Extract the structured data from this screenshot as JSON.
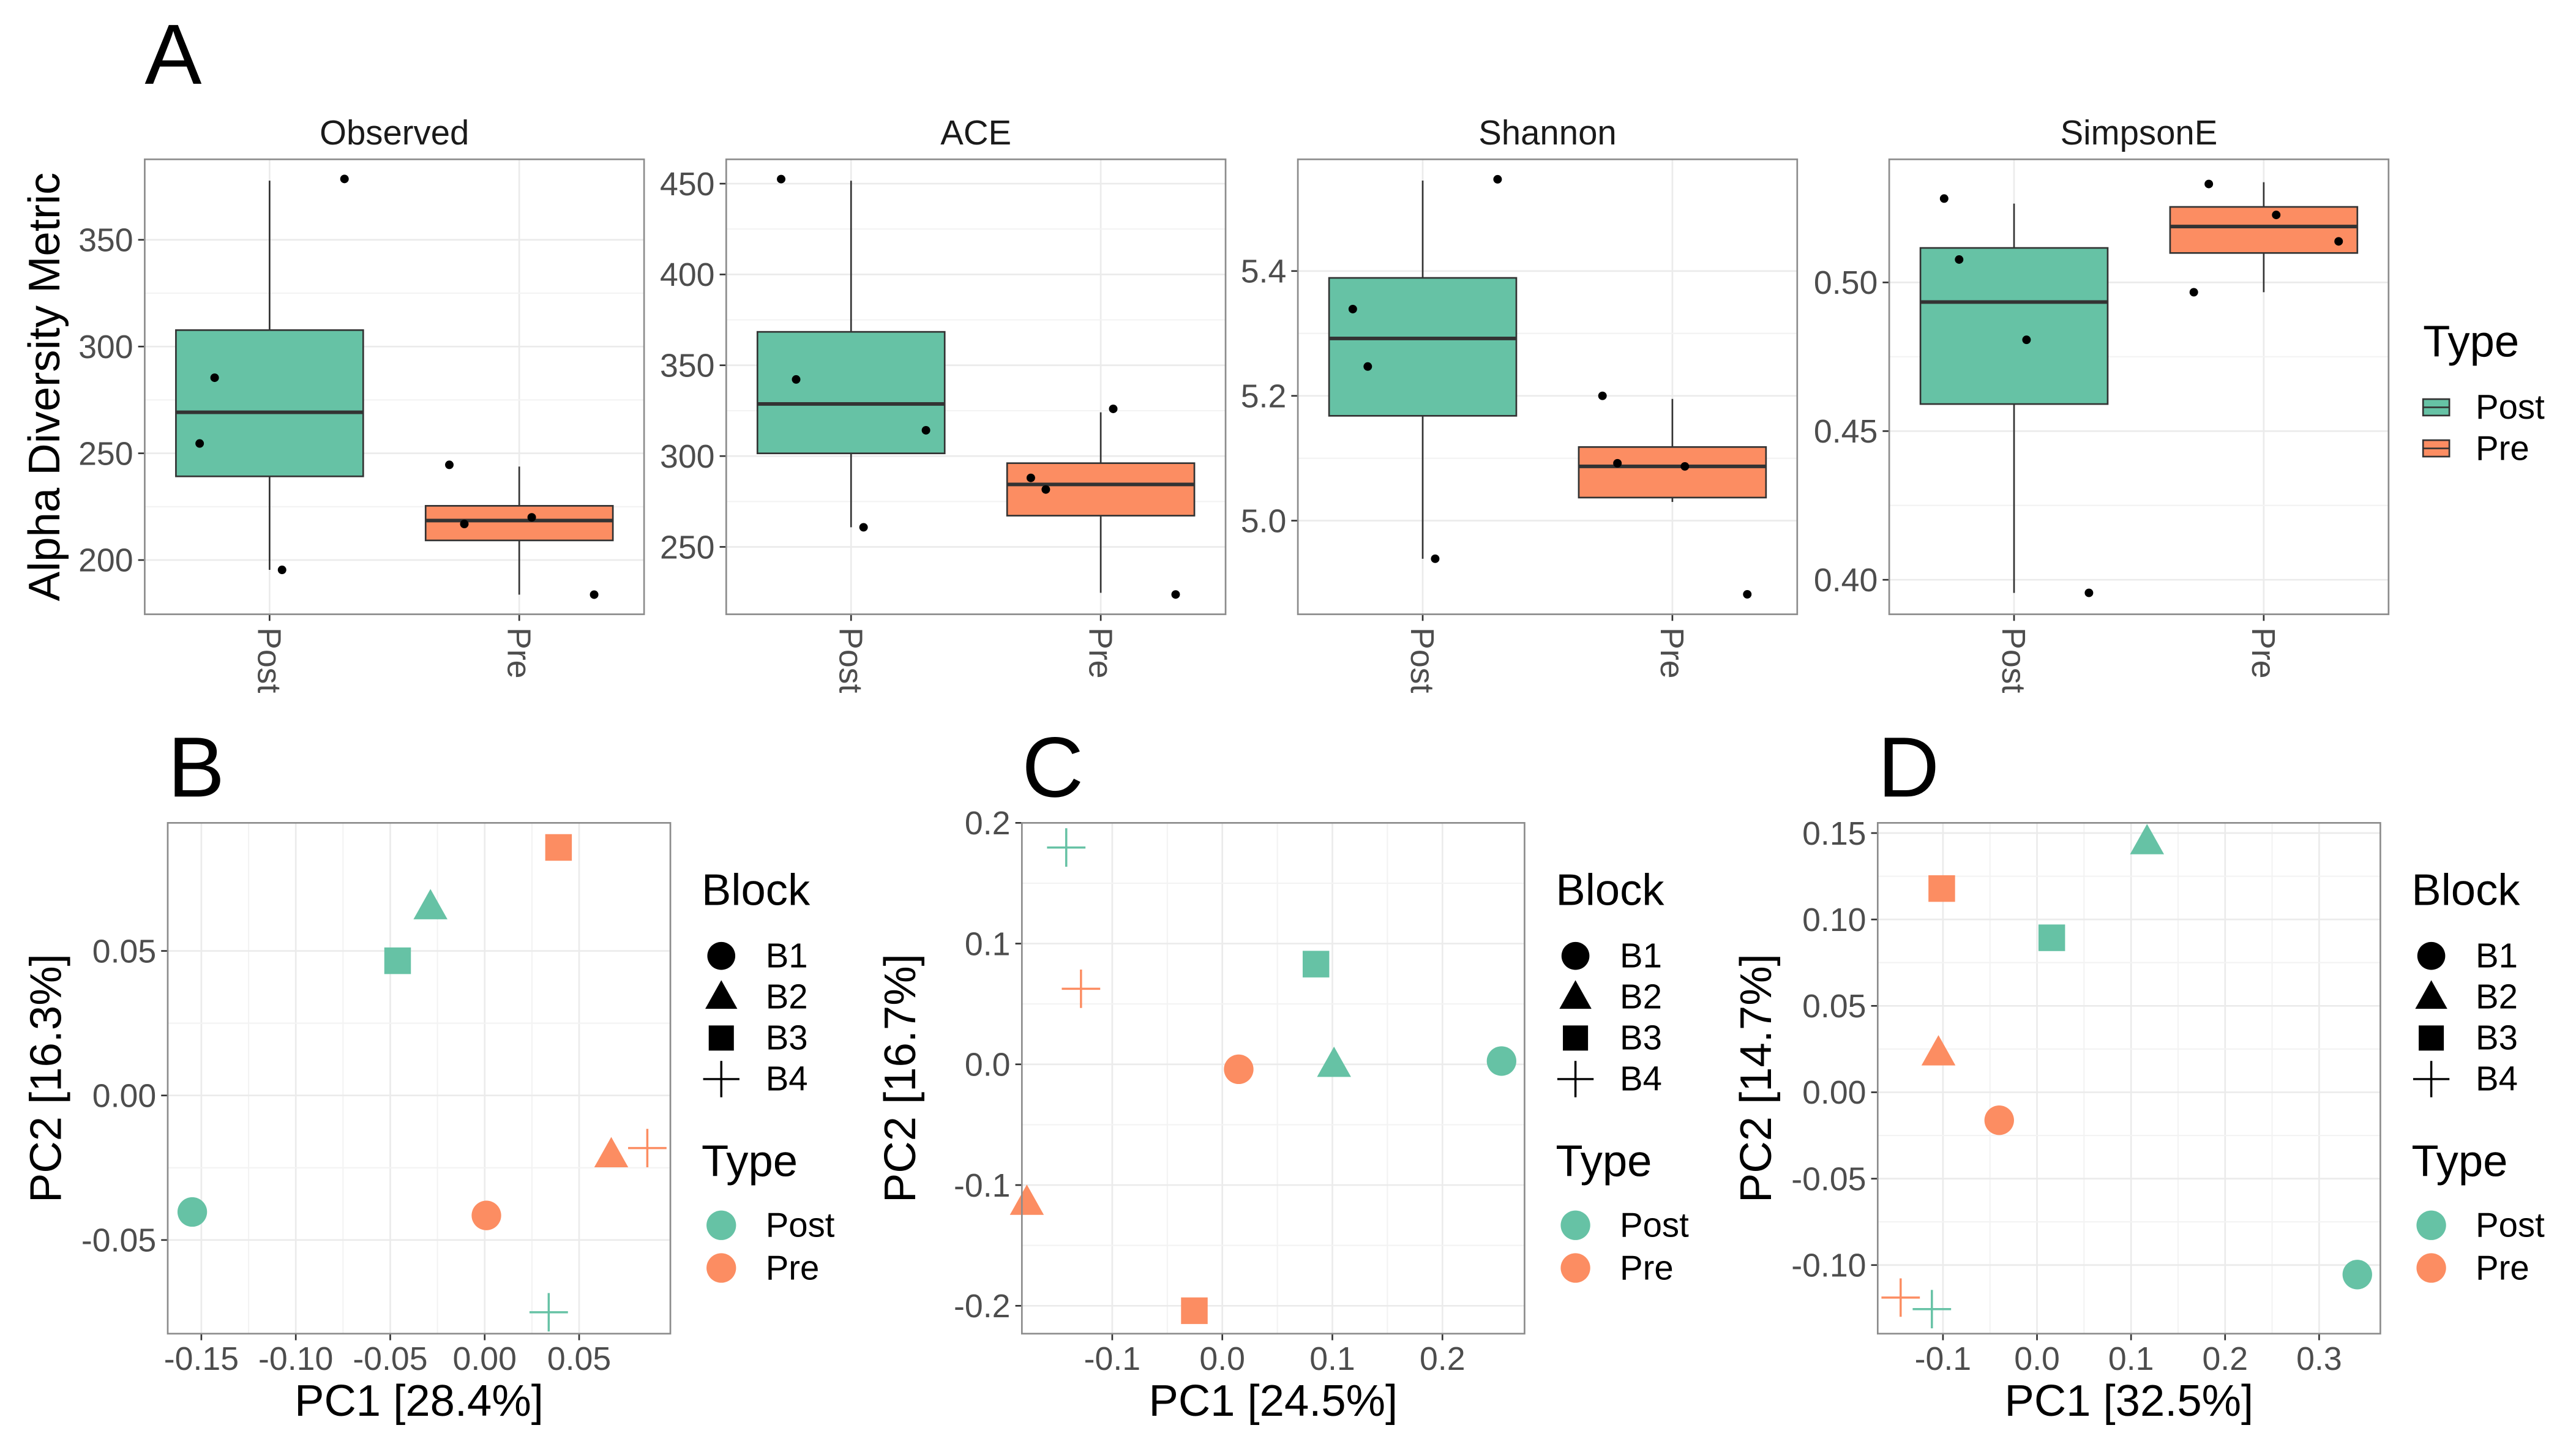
{
  "chart_data": [
    {
      "type": "box",
      "panel_label": "A",
      "title": "Observed",
      "ylabel": "Alpha Diversity Metric",
      "categories": [
        "Post",
        "Pre"
      ],
      "ylim": [
        174.6,
        387.7
      ],
      "yticks": [
        200,
        250,
        300,
        350
      ],
      "series": [
        {
          "name": "Post",
          "color": "#66c2a5",
          "box": {
            "whisker_low": 195.4,
            "q1": 239.2,
            "median": 269.2,
            "q3": 307.7,
            "whisker_high": 377.7
          },
          "points": [
            254.6,
            285.4,
            195.4,
            378.5
          ]
        },
        {
          "name": "Pre",
          "color": "#fc8d62",
          "box": {
            "whisker_low": 183.8,
            "q1": 209.2,
            "median": 218.5,
            "q3": 225.4,
            "whisker_high": 243.8
          },
          "points": [
            244.6,
            216.9,
            220,
            183.8
          ]
        }
      ]
    },
    {
      "type": "box",
      "title": "ACE",
      "categories": [
        "Post",
        "Pre"
      ],
      "ylim": [
        212.9,
        463.4
      ],
      "yticks": [
        250,
        300,
        350,
        400,
        450
      ],
      "series": [
        {
          "name": "Post",
          "color": "#66c2a5",
          "box": {
            "whisker_low": 260.8,
            "q1": 301.5,
            "median": 328.7,
            "q3": 368.4,
            "whisker_high": 451.6
          },
          "points": [
            452.5,
            342.2,
            260.8,
            314.2
          ]
        },
        {
          "name": "Pre",
          "color": "#fc8d62",
          "box": {
            "whisker_low": 224.7,
            "q1": 267.2,
            "median": 284.4,
            "q3": 296.1,
            "whisker_high": 324.1
          },
          "points": [
            288,
            281.6,
            326,
            223.8
          ]
        }
      ]
    },
    {
      "type": "box",
      "title": "Shannon",
      "categories": [
        "Post",
        "Pre"
      ],
      "ylim": [
        4.85,
        5.579
      ],
      "yticks": [
        {
          "value": 5,
          "label": "5.0"
        },
        5.2,
        5.4
      ],
      "series": [
        {
          "name": "Post",
          "color": "#66c2a5",
          "box": {
            "whisker_low": 4.939,
            "q1": 5.168,
            "median": 5.292,
            "q3": 5.389,
            "whisker_high": 5.545
          },
          "points": [
            5.339,
            5.247,
            4.939,
            5.547
          ]
        },
        {
          "name": "Pre",
          "color": "#fc8d62",
          "box": {
            "whisker_low": 5.03,
            "q1": 5.037,
            "median": 5.087,
            "q3": 5.118,
            "whisker_high": 5.195
          },
          "points": [
            5.2,
            5.092,
            5.087,
            4.882
          ]
        }
      ]
    },
    {
      "type": "box",
      "title": "SimpsonE",
      "legend_title": "Type",
      "categories": [
        "Post",
        "Pre"
      ],
      "ylim": [
        0.3884,
        0.5414
      ],
      "yticks": [
        {
          "value": 0.4,
          "label": "0.40"
        },
        0.45,
        {
          "value": 0.5,
          "label": "0.50"
        }
      ],
      "series": [
        {
          "name": "Post",
          "color": "#66c2a5",
          "box": {
            "whisker_low": 0.3956,
            "q1": 0.4591,
            "median": 0.4934,
            "q3": 0.5116,
            "whisker_high": 0.5265
          },
          "points": [
            0.5282,
            0.5077,
            0.4807,
            0.3956
          ]
        },
        {
          "name": "Pre",
          "color": "#fc8d62",
          "box": {
            "whisker_low": 0.4967,
            "q1": 0.5099,
            "median": 0.5188,
            "q3": 0.5254,
            "whisker_high": 0.5337
          },
          "points": [
            0.4967,
            0.5331,
            0.5227,
            0.5138
          ]
        }
      ]
    },
    {
      "type": "scatter",
      "panel_label": "B",
      "xlabel": "PC1 [28.4%]",
      "ylabel": "PC2 [16.3%]",
      "xlim": [
        -0.1678,
        0.0983
      ],
      "ylim": [
        -0.0824,
        0.0943
      ],
      "xticks": [
        -0.15,
        {
          "value": -0.1,
          "label": "-0.10"
        },
        -0.05,
        {
          "value": 0,
          "label": "0.00"
        },
        0.05
      ],
      "yticks": [
        -0.05,
        {
          "value": 0,
          "label": "0.00"
        },
        0.05
      ],
      "shape_legend": {
        "title": "Block",
        "items": [
          {
            "label": "B1",
            "shape": "circle"
          },
          {
            "label": "B2",
            "shape": "triangle"
          },
          {
            "label": "B3",
            "shape": "square"
          },
          {
            "label": "B4",
            "shape": "plus"
          }
        ]
      },
      "legend_title": "Type",
      "series": [
        {
          "name": "Post",
          "color": "#66c2a5",
          "x": [
            -0.1548,
            -0.0287,
            -0.0461,
            0.0339
          ],
          "y": [
            -0.0403,
            0.0653,
            0.0466,
            -0.075
          ],
          "blocks": [
            0,
            1,
            2,
            3
          ]
        },
        {
          "name": "Pre",
          "color": "#fc8d62",
          "x": [
            0.0009,
            0.067,
            0.0391,
            0.0861
          ],
          "y": [
            -0.0415,
            -0.0205,
            0.0858,
            -0.0182
          ],
          "blocks": [
            0,
            1,
            2,
            3
          ]
        }
      ]
    },
    {
      "type": "scatter",
      "panel_label": "C",
      "xlabel": "PC1 [24.5%]",
      "ylabel": "PC2 [16.7%]",
      "xlim": [
        -0.1821,
        0.2746
      ],
      "ylim": [
        -0.2231,
        0.2
      ],
      "xticks": [
        -0.1,
        {
          "value": 0,
          "label": "0.0"
        },
        0.1,
        0.2
      ],
      "yticks": [
        -0.2,
        -0.1,
        {
          "value": 0,
          "label": "0.0"
        },
        0.1,
        0.2
      ],
      "shape_legend": {
        "title": "Block",
        "items": [
          {
            "label": "B1",
            "shape": "circle"
          },
          {
            "label": "B2",
            "shape": "triangle"
          },
          {
            "label": "B3",
            "shape": "square"
          },
          {
            "label": "B4",
            "shape": "plus"
          }
        ]
      },
      "legend_title": "Type",
      "series": [
        {
          "name": "Post",
          "color": "#66c2a5",
          "x": [
            0.2537,
            0.1015,
            0.0851,
            -0.1418
          ],
          "y": [
            0.0027,
            0,
            0.083,
            0.1796
          ],
          "blocks": [
            0,
            1,
            2,
            3
          ]
        },
        {
          "name": "Pre",
          "color": "#fc8d62",
          "x": [
            0.0149,
            -0.1776,
            -0.0254,
            -0.1284
          ],
          "y": [
            -0.0041,
            -0.1143,
            -0.2041,
            0.0626
          ],
          "blocks": [
            0,
            1,
            2,
            3
          ]
        }
      ]
    },
    {
      "type": "scatter",
      "panel_label": "D",
      "xlabel": "PC1 [32.5%]",
      "ylabel": "PC2 [14.7%]",
      "xlim": [
        -0.1694,
        0.3651
      ],
      "ylim": [
        -0.1397,
        0.1559
      ],
      "xticks": [
        -0.1,
        {
          "value": 0,
          "label": "0.0"
        },
        0.1,
        0.2,
        0.3
      ],
      "yticks": [
        {
          "value": -0.1,
          "label": "-0.10"
        },
        -0.05,
        {
          "value": 0,
          "label": "0.00"
        },
        0.05,
        {
          "value": 0.1,
          "label": "0.10"
        },
        0.15
      ],
      "shape_legend": {
        "title": "Block",
        "items": [
          {
            "label": "B1",
            "shape": "circle"
          },
          {
            "label": "B2",
            "shape": "triangle"
          },
          {
            "label": "B3",
            "shape": "square"
          },
          {
            "label": "B4",
            "shape": "plus"
          }
        ]
      },
      "legend_title": "Type",
      "series": [
        {
          "name": "Post",
          "color": "#66c2a5",
          "x": [
            0.3406,
            0.117,
            0.0157,
            -0.1118
          ],
          "y": [
            -0.1055,
            0.145,
            0.0894,
            -0.1255
          ],
          "blocks": [
            0,
            1,
            2,
            3
          ]
        },
        {
          "name": "Pre",
          "color": "#fc8d62",
          "x": [
            -0.0402,
            -0.1048,
            -0.1013,
            -0.145
          ],
          "y": [
            -0.0162,
            0.0228,
            0.1179,
            -0.1188
          ],
          "blocks": [
            0,
            1,
            2,
            3
          ]
        }
      ]
    }
  ]
}
